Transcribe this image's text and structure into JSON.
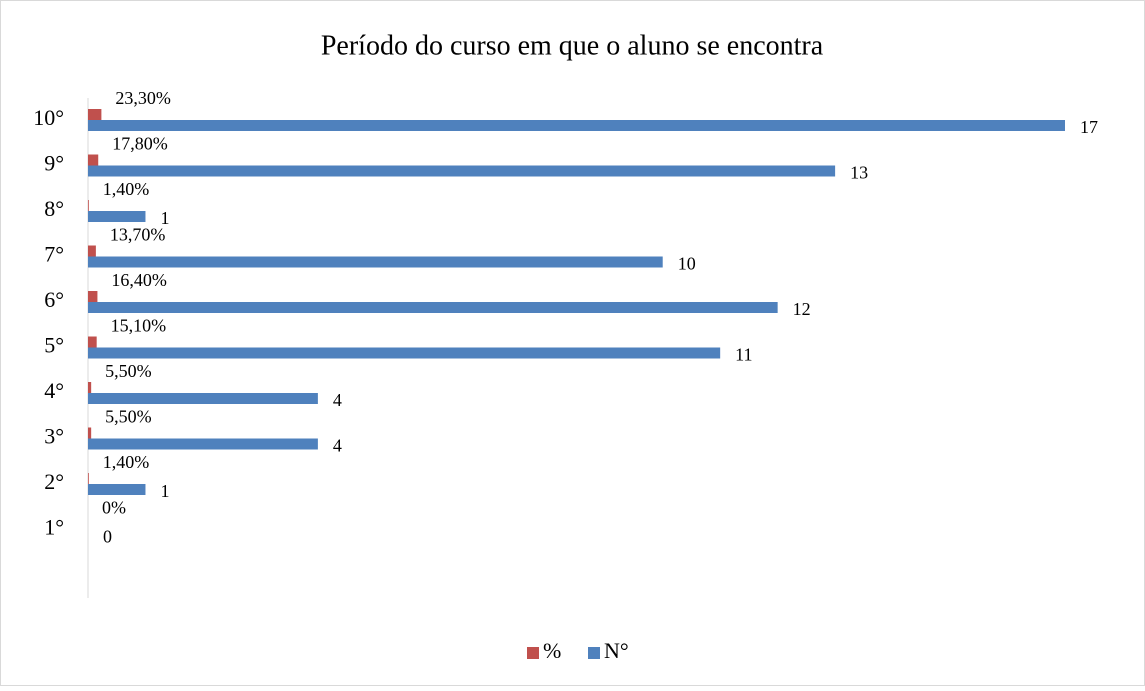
{
  "chart_data": {
    "type": "bar",
    "orientation": "horizontal",
    "title": "Período do curso em que o aluno se encontra",
    "categories": [
      "1°",
      "2°",
      "3°",
      "4°",
      "5°",
      "6°",
      "7°",
      "8°",
      "9°",
      "10°"
    ],
    "series": [
      {
        "name": "%",
        "color": "#c0504d",
        "values": [
          0,
          0.014,
          0.055,
          0.055,
          0.151,
          0.164,
          0.137,
          0.014,
          0.178,
          0.233
        ],
        "value_labels": [
          "0%",
          "1,40%",
          "5,50%",
          "5,50%",
          "15,10%",
          "16,40%",
          "13,70%",
          "1,40%",
          "17,80%",
          "23,30%"
        ]
      },
      {
        "name": "N°",
        "color": "#4f81bd",
        "values": [
          0,
          1,
          4,
          4,
          11,
          12,
          10,
          1,
          13,
          17
        ]
      }
    ],
    "xlim": [
      0,
      18
    ],
    "legend": "bottom"
  }
}
